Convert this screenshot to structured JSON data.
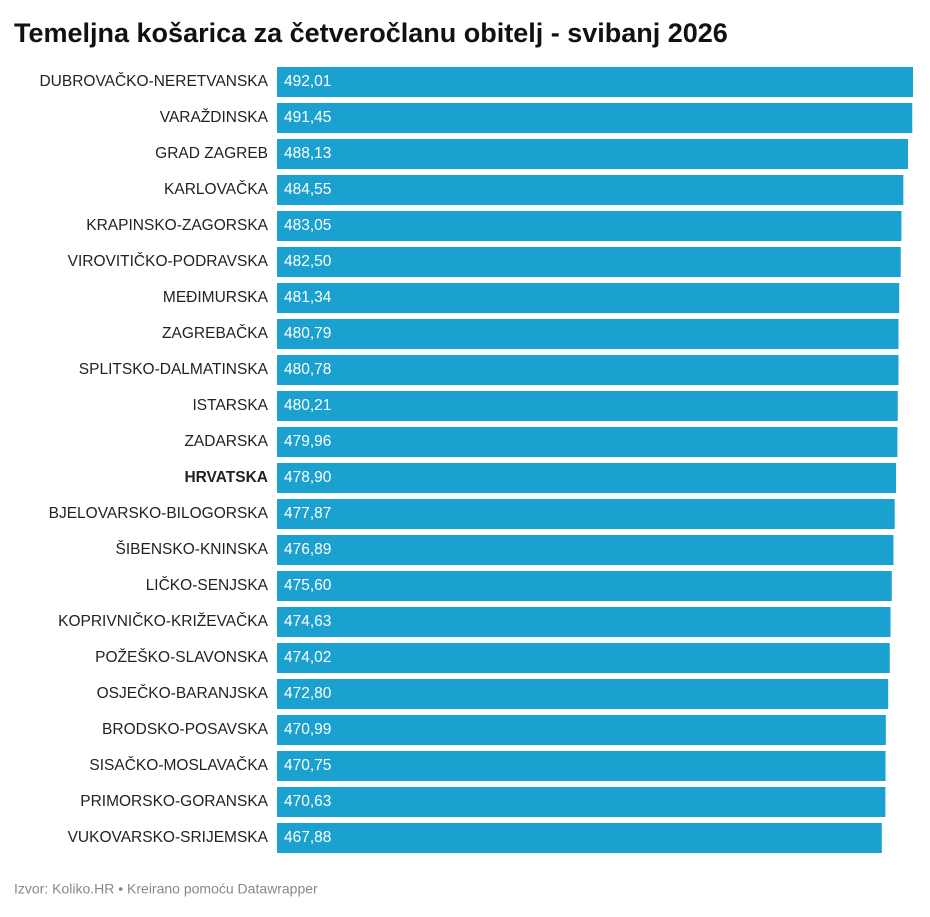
{
  "chart_data": {
    "type": "bar",
    "orientation": "horizontal",
    "title": "Temeljna košarica za četveročlanu obitelj - svibanj 2026",
    "source": "Izvor: Koliko.HR • Kreirano pomoću Datawrapper",
    "color": "#1ba1d0",
    "bold_categories": [
      "HRVATSKA"
    ],
    "categories": [
      "DUBROVAČKO-NERETVANSKA",
      "VARAŽDINSKA",
      "GRAD ZAGREB",
      "KARLOVAČKA",
      "KRAPINSKO-ZAGORSKA",
      "VIROVITIČKO-PODRAVSKA",
      "MEĐIMURSKA",
      "ZAGREBAČKA",
      "SPLITSKO-DALMATINSKA",
      "ISTARSKA",
      "ZADARSKA",
      "HRVATSKA",
      "BJELOVARSKO-BILOGORSKA",
      "ŠIBENSKO-KNINSKA",
      "LIČKO-SENJSKA",
      "KOPRIVNIČKO-KRIŽEVAČKA",
      "POŽEŠKO-SLAVONSKA",
      "OSJEČKO-BARANJSKA",
      "BRODSKO-POSAVSKA",
      "SISAČKO-MOSLAVAČKA",
      "PRIMORSKO-GORANSKA",
      "VUKOVARSKO-SRIJEMSKA"
    ],
    "values": [
      492.01,
      491.45,
      488.13,
      484.55,
      483.05,
      482.5,
      481.34,
      480.79,
      480.78,
      480.21,
      479.96,
      478.9,
      477.87,
      476.89,
      475.6,
      474.63,
      474.02,
      472.8,
      470.99,
      470.75,
      470.63,
      467.88
    ],
    "value_labels": [
      "492,01",
      "491,45",
      "488,13",
      "484,55",
      "483,05",
      "482,50",
      "481,34",
      "480,79",
      "480,78",
      "480,21",
      "479,96",
      "478,90",
      "477,87",
      "476,89",
      "475,60",
      "474,63",
      "474,02",
      "472,80",
      "470,99",
      "470,75",
      "470,63",
      "467,88"
    ]
  }
}
